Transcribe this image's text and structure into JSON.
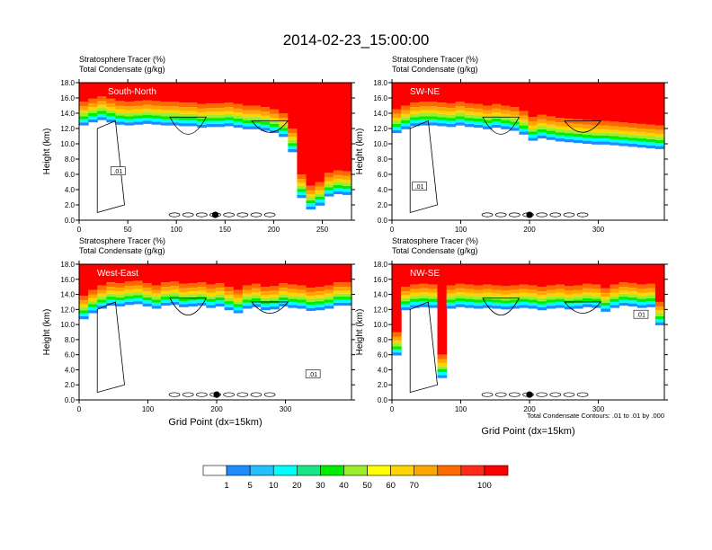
{
  "figure": {
    "title": "2014-02-23_15:00:00",
    "colors": {
      "frame": "#000000",
      "contour": "#000000",
      "marker": "#000000",
      "panel_label": "#ffffff"
    }
  },
  "chart_data": [
    {
      "type": "heatmap",
      "id": "south-north",
      "title": "South-North",
      "header_lines": [
        "Stratosphere Tracer   (%)",
        "Total Condensate   (g/kg)"
      ],
      "ylabel": "Height (km)",
      "xlabel": "",
      "xlim": [
        0,
        280
      ],
      "ylim": [
        0,
        18
      ],
      "xticks": [
        0,
        50,
        100,
        150,
        200,
        250
      ],
      "yticks": [
        0.0,
        2.0,
        4.0,
        6.0,
        8.0,
        10.0,
        12.0,
        14.0,
        16.0,
        18.0
      ],
      "marker_x": 140,
      "tracer_top_km": [
        15.5,
        15.9,
        16.2,
        15.9,
        15.6,
        15.5,
        15.6,
        15.7,
        15.6,
        15.5,
        15.5,
        15.4,
        15.4,
        15.2,
        15.3,
        15.3,
        15.4,
        15.2,
        15.0,
        15.0,
        14.8,
        14.5,
        14.0,
        12.0,
        6.0,
        4.5,
        5.0,
        6.2,
        6.5,
        6.4
      ],
      "contour_label": ".01",
      "contour_label_at": [
        40,
        6.4
      ]
    },
    {
      "type": "heatmap",
      "id": "sw-ne",
      "title": "SW-NE",
      "header_lines": [
        "Stratosphere Tracer   (%)",
        "Total Condensate   (g/kg)"
      ],
      "ylabel": "Height (km)",
      "xlabel": "",
      "xlim": [
        0,
        396
      ],
      "ylim": [
        0,
        18
      ],
      "xticks": [
        0,
        100,
        200,
        300
      ],
      "yticks": [
        0.0,
        2.0,
        4.0,
        6.0,
        8.0,
        10.0,
        12.0,
        14.0,
        16.0,
        18.0
      ],
      "marker_x": 200,
      "tracer_top_km": [
        14.5,
        15.0,
        15.4,
        15.5,
        15.5,
        15.4,
        15.3,
        15.5,
        15.3,
        15.2,
        15.0,
        15.2,
        15.0,
        14.8,
        14.3,
        13.5,
        13.8,
        13.6,
        13.4,
        13.3,
        13.2,
        13.1,
        13.0,
        13.0,
        12.9,
        12.8,
        12.7,
        12.6,
        12.5,
        12.4
      ],
      "contour_label": ".01",
      "contour_label_at": [
        40,
        4.4
      ]
    },
    {
      "type": "heatmap",
      "id": "west-east",
      "title": "West-East",
      "header_lines": [
        "Stratosphere Tracer   (%)",
        "Total Condensate   (g/kg)"
      ],
      "ylabel": "Height (km)",
      "xlabel": "Grid Point (dx=15km)",
      "xlim": [
        0,
        396
      ],
      "ylim": [
        0,
        18
      ],
      "xticks": [
        0,
        100,
        200,
        300
      ],
      "yticks": [
        0.0,
        2.0,
        4.0,
        6.0,
        8.0,
        10.0,
        12.0,
        14.0,
        16.0,
        18.0
      ],
      "marker_x": 200,
      "tracer_top_km": [
        13.8,
        14.6,
        15.2,
        15.6,
        15.5,
        15.7,
        15.8,
        15.5,
        15.2,
        15.6,
        15.7,
        15.4,
        15.5,
        15.6,
        15.3,
        15.5,
        15.0,
        14.6,
        15.2,
        15.4,
        15.0,
        15.1,
        15.5,
        15.3,
        15.2,
        14.9,
        15.0,
        15.2,
        15.6,
        15.6
      ],
      "contour_label": ".01",
      "contour_label_at": [
        340,
        3.4
      ]
    },
    {
      "type": "heatmap",
      "id": "nw-se",
      "title": "NW-SE",
      "header_lines": [
        "Stratosphere Tracer   (%)",
        "Total Condensate   (g/kg)"
      ],
      "ylabel": "Height (km)",
      "xlabel": "Grid Point (dx=15km)",
      "note": "Total Condensate Contours: .01 to .01 by .000",
      "xlim": [
        0,
        396
      ],
      "ylim": [
        0,
        18
      ],
      "xticks": [
        0,
        100,
        200,
        300
      ],
      "yticks": [
        0.0,
        2.0,
        4.0,
        6.0,
        8.0,
        10.0,
        12.0,
        14.0,
        16.0,
        18.0
      ],
      "marker_x": 200,
      "tracer_top_km": [
        9.0,
        15.0,
        15.3,
        15.4,
        15.3,
        6.0,
        15.2,
        15.4,
        15.3,
        15.2,
        15.3,
        15.2,
        15.1,
        15.2,
        15.3,
        15.2,
        15.0,
        15.2,
        15.3,
        15.1,
        15.2,
        15.4,
        15.3,
        14.8,
        15.3,
        15.6,
        15.5,
        15.3,
        15.4,
        13.0
      ],
      "contour_label": ".01",
      "contour_label_at": [
        362,
        11.3
      ]
    }
  ],
  "colorbar": {
    "bins": [
      "#ffffff",
      "#1e8cff",
      "#26bfff",
      "#00ffff",
      "#17e78a",
      "#00ee00",
      "#9bee2e",
      "#ffff00",
      "#ffd400",
      "#ffa500",
      "#ff6a00",
      "#ff2a1a",
      "#ff0000"
    ],
    "labels": [
      "1",
      "5",
      "10",
      "20",
      "30",
      "40",
      "50",
      "60",
      "70",
      "100"
    ]
  }
}
